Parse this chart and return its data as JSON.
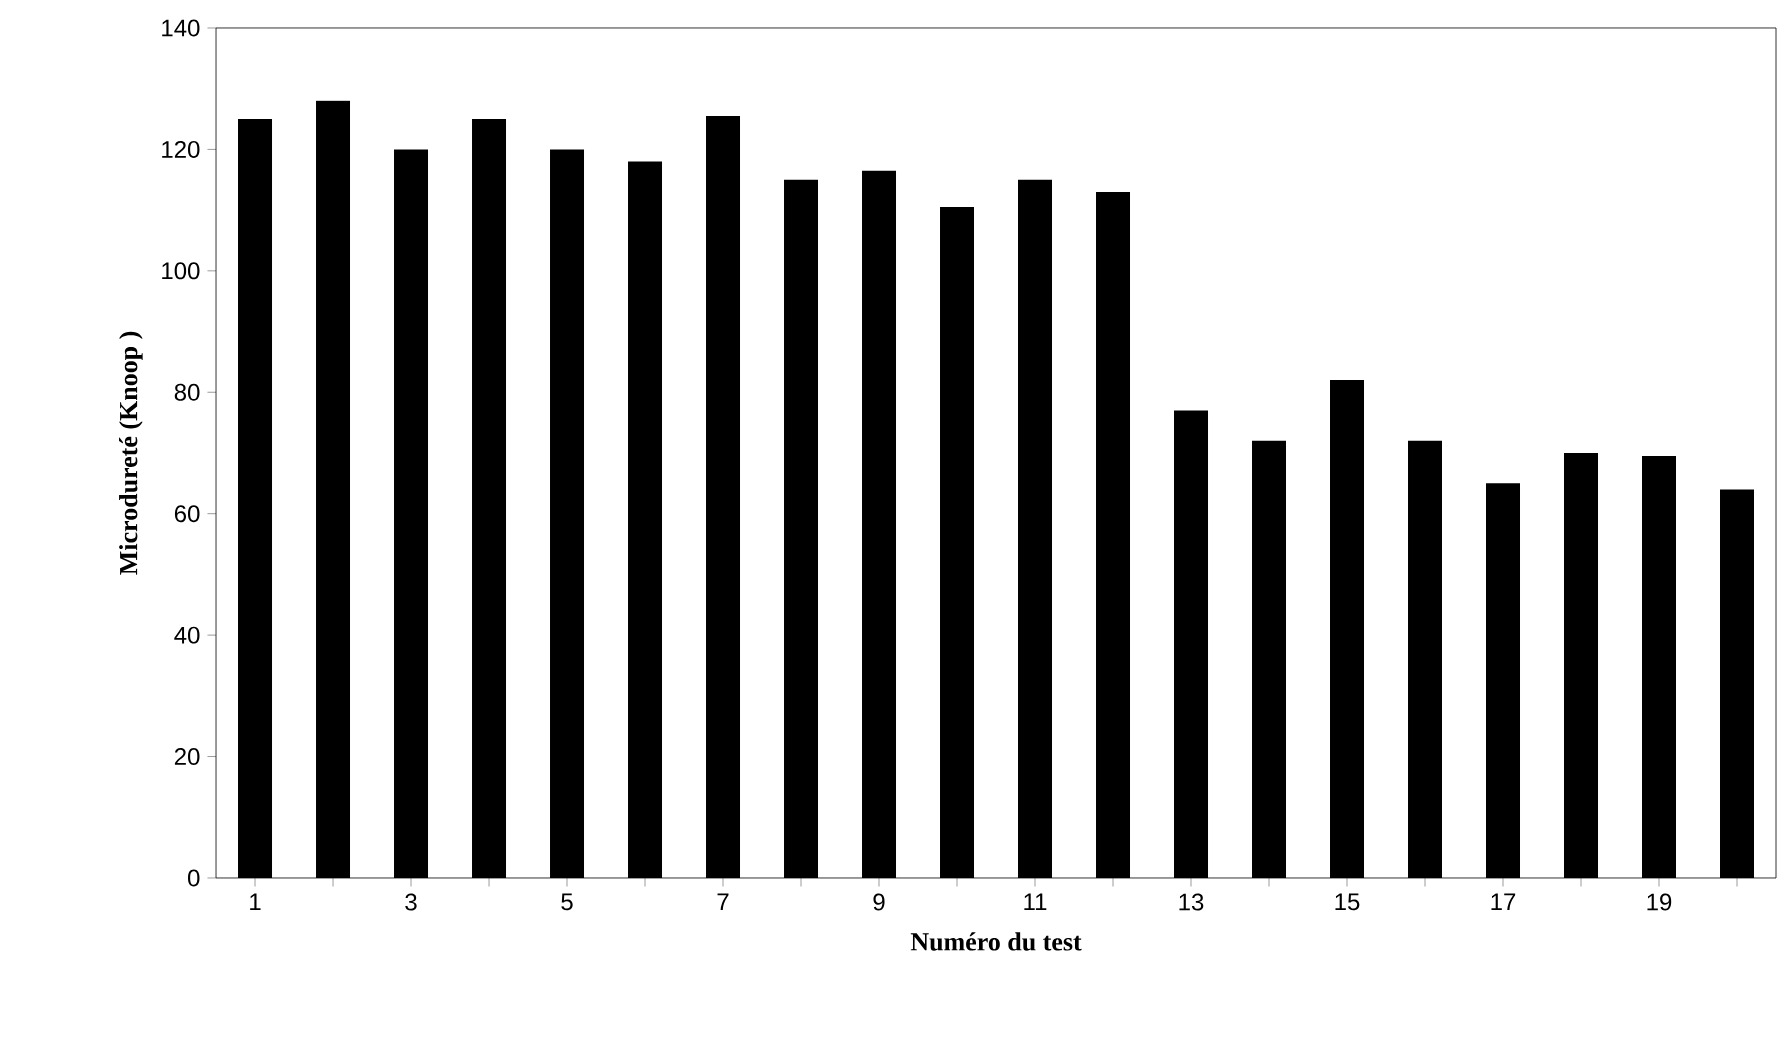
{
  "chart_data": {
    "type": "bar",
    "xlabel": "Numéro du test",
    "ylabel": "Microdureté (Knoop )",
    "categories": [
      "1",
      null,
      "3",
      null,
      "5",
      null,
      "7",
      null,
      "9",
      null,
      "11",
      null,
      "13",
      null,
      "15",
      null,
      "17",
      null,
      "19",
      null
    ],
    "values": [
      125,
      128,
      120,
      125,
      120,
      118,
      125.5,
      115,
      116.5,
      110.5,
      115,
      113,
      77,
      72,
      82,
      72,
      65,
      70,
      69.5,
      64
    ],
    "color": "#000000",
    "ylim": [
      0,
      140
    ],
    "yticks": [
      0,
      20,
      40,
      60,
      80,
      100,
      120,
      140
    ],
    "grid": false
  }
}
